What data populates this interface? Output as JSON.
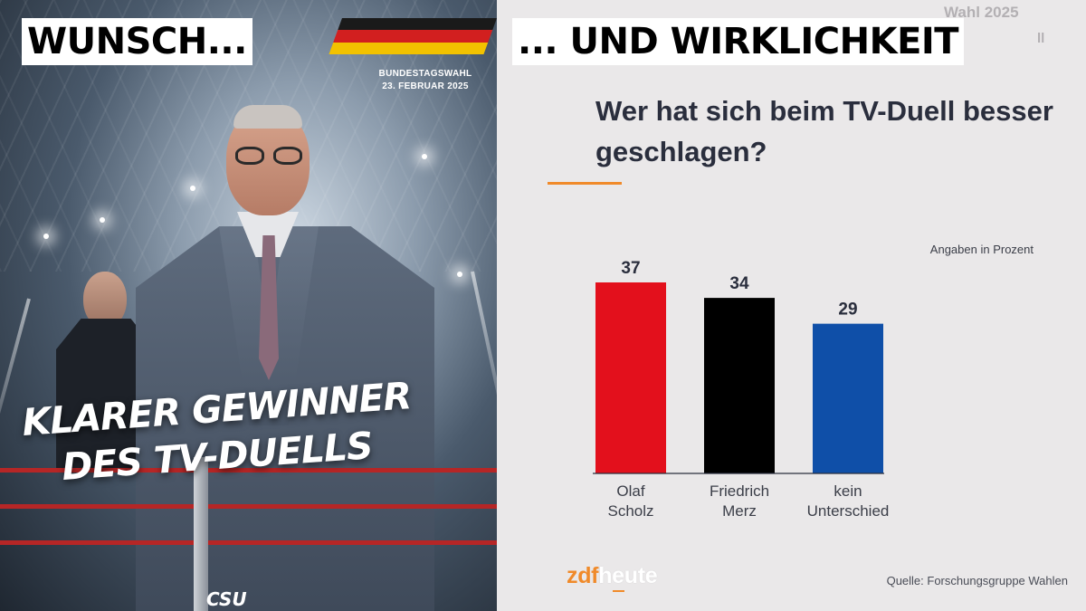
{
  "left_panel": {
    "caption": "WUNSCH...",
    "election_title": "BUNDESTAGSWAHL",
    "election_date": "23. FEBRUAR 2025",
    "headline_line1": "KLARER GEWINNER",
    "headline_line2": "DES TV-DUELLS",
    "party_logo": "CSU",
    "flag_colors": [
      "#1a1a1a",
      "#d21f1f",
      "#f2c200"
    ]
  },
  "right_panel": {
    "caption": "... UND WIRKLICHKEIT",
    "partial_header": "Wahl 2025",
    "partial_sub": "ll",
    "unit_note": "Angaben in Prozent",
    "brand_zdf": "zdf",
    "brand_heute": "heute",
    "source": "Quelle: Forschungsgruppe Wahlen",
    "accent_color": "#f08a2a"
  },
  "chart_data": {
    "type": "bar",
    "title": "Wer hat sich beim TV-Duell besser geschlagen?",
    "categories": [
      [
        "Olaf",
        "Scholz"
      ],
      [
        "Friedrich",
        "Merz"
      ],
      [
        "kein",
        "Unterschied"
      ]
    ],
    "values": [
      37,
      34,
      29
    ],
    "colors": [
      "#e3101c",
      "#000000",
      "#0f4fa8"
    ],
    "ylabel": "",
    "ylim": [
      0,
      37
    ],
    "grid": false,
    "data_labels": true
  }
}
